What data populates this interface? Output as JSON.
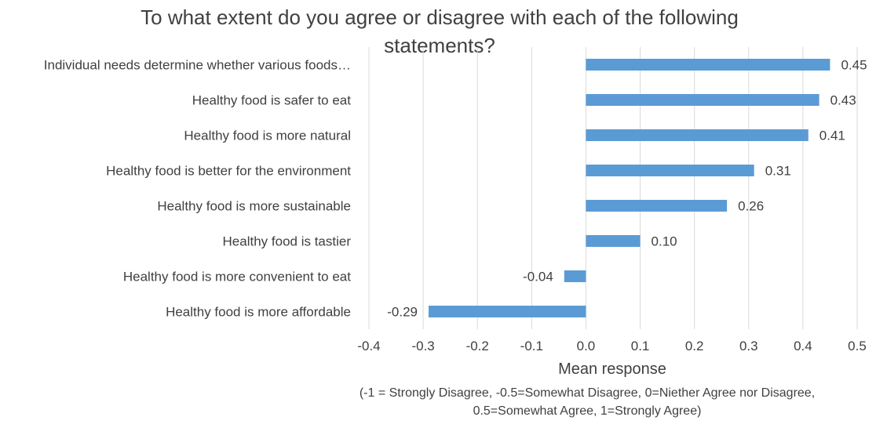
{
  "chart_data": {
    "type": "bar",
    "orientation": "horizontal",
    "title": "To what extent do you agree or disagree with each of the following statements?",
    "xlabel": "Mean response",
    "xlabel_note_line1": "(-1 = Strongly Disagree, -0.5=Somewhat Disagree, 0=Niether Agree nor Disagree,",
    "xlabel_note_line2": "0.5=Somewhat Agree, 1=Strongly Agree)",
    "categories": [
      "Individual needs determine whether various foods…",
      "Healthy  food is safer to eat",
      "Healthy food is more natural",
      "Healthy food is better for the environment",
      "Healthy food is more sustainable",
      "Healthy food is tastier",
      "Healthy food is more convenient to eat",
      "Healthy food is more affordable"
    ],
    "values": [
      0.45,
      0.43,
      0.41,
      0.31,
      0.26,
      0.1,
      -0.04,
      -0.29
    ],
    "value_labels": [
      "0.45",
      "0.43",
      "0.41",
      "0.31",
      "0.26",
      "0.10",
      "-0.04",
      "-0.29"
    ],
    "xlim": [
      -0.4,
      0.5
    ],
    "xticks": [
      "-0.4",
      "-0.3",
      "-0.2",
      "-0.1",
      "0.0",
      "0.1",
      "0.2",
      "0.3",
      "0.4",
      "0.5"
    ],
    "grid": true,
    "bar_color": "#5B9BD5",
    "grid_color": "#D9D9D9"
  }
}
